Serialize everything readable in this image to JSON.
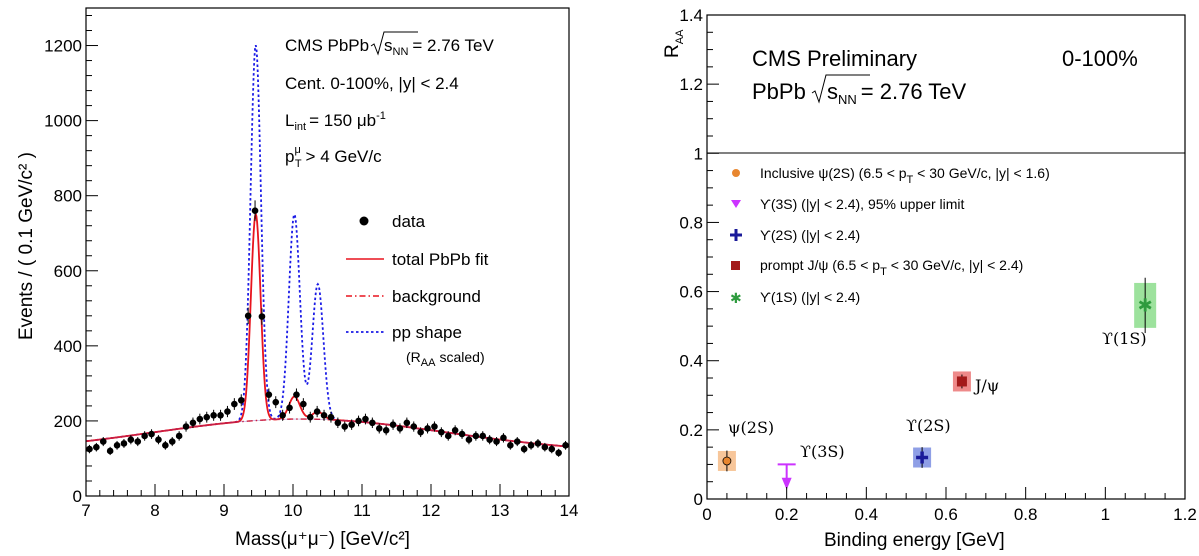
{
  "chart_data": [
    {
      "type": "scatter",
      "xlabel": "Mass(μ⁺μ⁻) [GeV/c²]",
      "ylabel": "Events / ( 0.1 GeV/c² )",
      "xlim": [
        7,
        14
      ],
      "ylim": [
        0,
        1300
      ],
      "x_ticks": [
        "7",
        "8",
        "9",
        "10",
        "11",
        "12",
        "13",
        "14"
      ],
      "y_ticks": [
        "0",
        "200",
        "400",
        "600",
        "800",
        "1000",
        "1200"
      ],
      "annotations": {
        "line1_prefix": "CMS PbPb",
        "line1_sqrt": "s",
        "line1_sub": "NN",
        "line1_suffix": "= 2.76 TeV",
        "line2": "Cent. 0-100%, |y| < 2.4",
        "line3_prefix": "L",
        "line3_sub": "int",
        "line3_mid": "= 150 μb",
        "line3_sup": "-1",
        "line4_prefix": "p",
        "line4_sup": "μ",
        "line4_sub": "T",
        "line4_suffix": "> 4 GeV/c"
      },
      "legend": {
        "data": "data",
        "fit": "total PbPb fit",
        "background": "background",
        "pp": "pp shape",
        "pp_note_prefix": "(R",
        "pp_note_sub": "AA",
        "pp_note_suffix": "scaled)"
      },
      "colors": {
        "fit": "#e8141e",
        "background": "#e8141e",
        "pp": "#1a1ae6",
        "data": "#000000"
      },
      "data_points": [
        [
          7.05,
          125
        ],
        [
          7.15,
          130
        ],
        [
          7.25,
          145
        ],
        [
          7.35,
          120
        ],
        [
          7.45,
          135
        ],
        [
          7.55,
          140
        ],
        [
          7.65,
          150
        ],
        [
          7.75,
          145
        ],
        [
          7.85,
          160
        ],
        [
          7.95,
          165
        ],
        [
          8.05,
          150
        ],
        [
          8.15,
          135
        ],
        [
          8.25,
          145
        ],
        [
          8.35,
          160
        ],
        [
          8.45,
          185
        ],
        [
          8.55,
          195
        ],
        [
          8.65,
          205
        ],
        [
          8.75,
          210
        ],
        [
          8.85,
          215
        ],
        [
          8.95,
          215
        ],
        [
          9.05,
          225
        ],
        [
          9.15,
          245
        ],
        [
          9.25,
          255
        ],
        [
          9.35,
          480
        ],
        [
          9.45,
          760
        ],
        [
          9.55,
          478
        ],
        [
          9.65,
          270
        ],
        [
          9.75,
          250
        ],
        [
          9.85,
          215
        ],
        [
          9.95,
          235
        ],
        [
          10.05,
          270
        ],
        [
          10.15,
          245
        ],
        [
          10.25,
          210
        ],
        [
          10.35,
          225
        ],
        [
          10.45,
          215
        ],
        [
          10.55,
          210
        ],
        [
          10.65,
          195
        ],
        [
          10.75,
          185
        ],
        [
          10.85,
          190
        ],
        [
          10.95,
          200
        ],
        [
          11.05,
          205
        ],
        [
          11.15,
          195
        ],
        [
          11.25,
          180
        ],
        [
          11.35,
          175
        ],
        [
          11.45,
          190
        ],
        [
          11.55,
          180
        ],
        [
          11.65,
          195
        ],
        [
          11.75,
          185
        ],
        [
          11.85,
          170
        ],
        [
          11.95,
          180
        ],
        [
          12.05,
          185
        ],
        [
          12.15,
          170
        ],
        [
          12.25,
          160
        ],
        [
          12.35,
          175
        ],
        [
          12.45,
          165
        ],
        [
          12.55,
          150
        ],
        [
          12.65,
          160
        ],
        [
          12.75,
          160
        ],
        [
          12.85,
          150
        ],
        [
          12.95,
          145
        ],
        [
          13.05,
          155
        ],
        [
          13.15,
          135
        ],
        [
          13.25,
          145
        ],
        [
          13.35,
          125
        ],
        [
          13.45,
          135
        ],
        [
          13.55,
          140
        ],
        [
          13.65,
          130
        ],
        [
          13.75,
          125
        ],
        [
          13.85,
          115
        ],
        [
          13.95,
          135
        ]
      ]
    },
    {
      "type": "scatter",
      "xlabel": "Binding energy [GeV]",
      "ylabel_prefix": "R",
      "ylabel_sub": "AA",
      "xlim": [
        0,
        1.2
      ],
      "ylim": [
        0,
        1.4
      ],
      "x_ticks": [
        "0",
        "0.2",
        "0.4",
        "0.6",
        "0.8",
        "1",
        "1.2"
      ],
      "y_ticks": [
        "0",
        "0.2",
        "0.4",
        "0.6",
        "0.8",
        "1",
        "1.2",
        "1.4"
      ],
      "header": {
        "cms": "CMS Preliminary",
        "centrality": "0-100%",
        "energy_prefix": "PbPb",
        "energy_sqrt": "s",
        "energy_sub": "NN",
        "energy_suffix": "= 2.76 TeV"
      },
      "legend": [
        {
          "label": "Inclusive ψ(2S) (6.5 < p",
          "sub": "T",
          "rest": " < 30 GeV/c, |y| < 1.6)",
          "color": "#e8862f",
          "marker": "circle"
        },
        {
          "label": "ϒ(3S) (|y| < 2.4), 95% upper limit",
          "sub": "",
          "rest": "",
          "color": "#cc33ff",
          "marker": "triangle-down"
        },
        {
          "label": "ϒ(2S) (|y| < 2.4)",
          "sub": "",
          "rest": "",
          "color": "#1a1a99",
          "marker": "cross"
        },
        {
          "label": "prompt J/ψ (6.5 < p",
          "sub": "T",
          "rest": " < 30 GeV/c, |y| < 2.4)",
          "color": "#a31a1a",
          "marker": "square"
        },
        {
          "label": "ϒ(1S) (|y| < 2.4)",
          "sub": "",
          "rest": "",
          "color": "#2e9b3e",
          "marker": "star"
        }
      ],
      "points": [
        {
          "name": "ψ(2S)",
          "x": 0.05,
          "y": 0.11,
          "stat": 0.03,
          "color": "#e8862f",
          "box": "#f7c69a",
          "marker": "circle"
        },
        {
          "name": "ϒ(3S)",
          "x": 0.2,
          "y": 0.1,
          "upper_limit": true,
          "color": "#cc33ff",
          "marker": "triangle-down"
        },
        {
          "name": "ϒ(2S)",
          "x": 0.54,
          "y": 0.12,
          "stat": 0.03,
          "color": "#1a1a99",
          "box": "#8f9fe6",
          "marker": "cross"
        },
        {
          "name": "J/ψ",
          "x": 0.64,
          "y": 0.34,
          "stat": 0.02,
          "color": "#a31a1a",
          "box": "#ee8a8a",
          "marker": "square"
        },
        {
          "name": "ϒ(1S)",
          "x": 1.1,
          "y": 0.56,
          "stat": 0.08,
          "color": "#2e9b3e",
          "box": "#9de29d",
          "marker": "star"
        }
      ]
    }
  ]
}
